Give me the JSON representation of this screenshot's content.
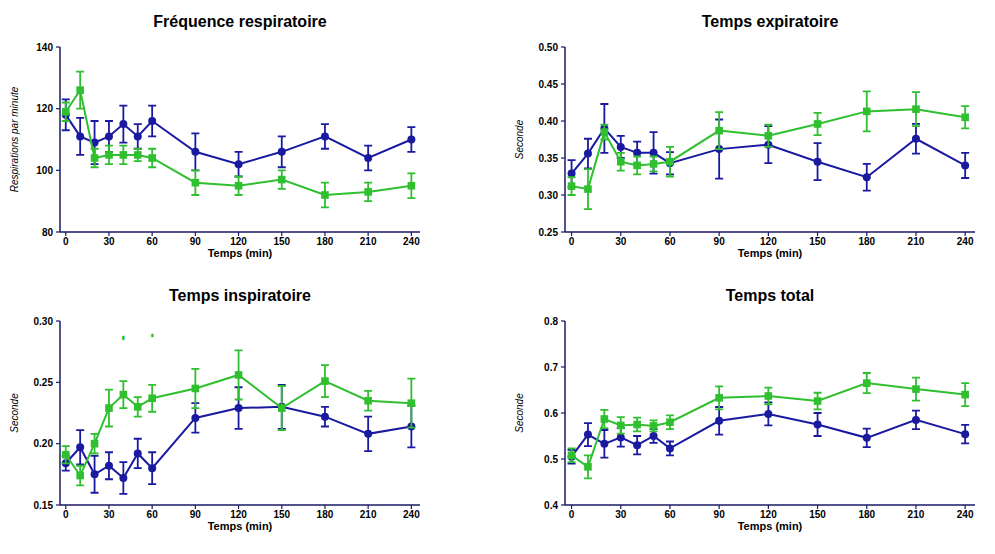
{
  "chart_data": [
    {
      "type": "line",
      "title": "Fréquence respiratoire",
      "xlabel": "Temps (min)",
      "ylabel": "Respirations par minute",
      "x": [
        0,
        10,
        20,
        30,
        40,
        50,
        60,
        90,
        120,
        150,
        180,
        210,
        240
      ],
      "xlim": [
        -4,
        246
      ],
      "xticks": [
        0,
        30,
        60,
        90,
        120,
        150,
        180,
        210,
        240
      ],
      "ylim": [
        80,
        140
      ],
      "yticks": [
        80,
        100,
        120,
        140
      ],
      "grid": false,
      "series": [
        {
          "color": "#1a1aa0",
          "marker": "circle",
          "values": [
            118,
            111,
            109,
            111,
            115,
            111,
            116,
            106,
            102,
            106,
            111,
            104,
            110
          ],
          "errors": [
            5,
            6,
            7,
            5,
            6,
            4,
            5,
            6,
            4,
            5,
            4,
            4,
            4
          ]
        },
        {
          "color": "#2fbf2f",
          "marker": "square",
          "values": [
            119,
            126,
            104,
            105,
            105,
            105,
            104,
            96,
            95,
            97,
            92,
            93,
            95
          ],
          "errors": [
            3,
            6,
            3,
            3,
            3,
            2,
            3,
            4,
            3,
            3,
            4,
            3,
            4
          ]
        }
      ]
    },
    {
      "type": "line",
      "title": "Temps expiratoire",
      "xlabel": "Temps (min)",
      "ylabel": "Seconde",
      "x": [
        0,
        10,
        20,
        30,
        40,
        50,
        60,
        90,
        120,
        150,
        180,
        210,
        240
      ],
      "xlim": [
        -4,
        246
      ],
      "xticks": [
        0,
        30,
        60,
        90,
        120,
        150,
        180,
        210,
        240
      ],
      "ylim": [
        0.25,
        0.5
      ],
      "yticks": [
        0.25,
        {
          "value": 0.3,
          "label": "0.30"
        },
        0.35,
        {
          "value": 0.4,
          "label": "0.40"
        },
        0.45,
        {
          "value": 0.5,
          "label": "0.50"
        }
      ],
      "grid": false,
      "series": [
        {
          "color": "#1a1aa0",
          "marker": "circle",
          "values": [
            0.329,
            0.356,
            0.39,
            0.365,
            0.357,
            0.357,
            0.343,
            0.362,
            0.368,
            0.345,
            0.324,
            0.376,
            0.34
          ],
          "errors": [
            0.018,
            0.02,
            0.033,
            0.015,
            0.015,
            0.028,
            0.015,
            0.04,
            0.025,
            0.025,
            0.018,
            0.02,
            0.017
          ]
        },
        {
          "color": "#2fbf2f",
          "marker": "square",
          "values": [
            0.312,
            0.308,
            0.385,
            0.345,
            0.34,
            0.342,
            0.345,
            0.387,
            0.38,
            0.396,
            0.413,
            0.416,
            0.405
          ],
          "errors": [
            0.012,
            0.027,
            0.01,
            0.012,
            0.012,
            0.01,
            0.02,
            0.025,
            0.015,
            0.015,
            0.027,
            0.023,
            0.015
          ]
        }
      ]
    },
    {
      "type": "line",
      "title": "Temps inspiratoire",
      "xlabel": "Temps (min)",
      "ylabel": "Seconde",
      "x": [
        0,
        10,
        20,
        30,
        40,
        50,
        60,
        90,
        120,
        150,
        180,
        210,
        240
      ],
      "xlim": [
        -4,
        246
      ],
      "xticks": [
        0,
        30,
        60,
        90,
        120,
        150,
        180,
        210,
        240
      ],
      "ylim": [
        0.15,
        0.3
      ],
      "yticks": [
        0.15,
        {
          "value": 0.2,
          "label": "0.20"
        },
        0.25,
        {
          "value": 0.3,
          "label": "0.30"
        }
      ],
      "grid": false,
      "series": [
        {
          "color": "#1a1aa0",
          "marker": "circle",
          "values": [
            0.184,
            0.197,
            0.175,
            0.182,
            0.172,
            0.192,
            0.18,
            0.221,
            0.229,
            0.23,
            0.222,
            0.208,
            0.214
          ],
          "errors": [
            0.006,
            0.014,
            0.015,
            0.011,
            0.013,
            0.012,
            0.013,
            0.012,
            0.017,
            0.018,
            0.008,
            0.014,
            0.017
          ]
        },
        {
          "color": "#2fbf2f",
          "marker": "square",
          "values": [
            0.191,
            0.174,
            0.2,
            0.229,
            0.24,
            0.23,
            0.237,
            0.245,
            0.256,
            0.229,
            0.251,
            0.235,
            0.233
          ],
          "errors": [
            0.007,
            0.008,
            0.008,
            0.015,
            0.011,
            0.008,
            0.011,
            0.016,
            0.02,
            0.018,
            0.013,
            0.008,
            0.02
          ]
        }
      ],
      "annotations": [
        {
          "x": 40,
          "y": 0.287,
          "text": "•••",
          "color": "#2fbf2f"
        },
        {
          "x": 60,
          "y": 0.289,
          "text": "••",
          "color": "#2fbf2f"
        }
      ]
    },
    {
      "type": "line",
      "title": "Temps total",
      "xlabel": "Temps (min)",
      "ylabel": "Seconde",
      "x": [
        0,
        10,
        20,
        30,
        40,
        50,
        60,
        90,
        120,
        150,
        180,
        210,
        240
      ],
      "xlim": [
        -4,
        246
      ],
      "xticks": [
        0,
        30,
        60,
        90,
        120,
        150,
        180,
        210,
        240
      ],
      "ylim": [
        0.4,
        0.8
      ],
      "yticks": [
        0.4,
        0.5,
        0.6,
        0.7,
        0.8
      ],
      "grid": false,
      "series": [
        {
          "color": "#1a1aa0",
          "marker": "circle",
          "values": [
            0.505,
            0.553,
            0.533,
            0.547,
            0.53,
            0.55,
            0.523,
            0.583,
            0.598,
            0.575,
            0.546,
            0.585,
            0.554
          ],
          "errors": [
            0.015,
            0.025,
            0.03,
            0.02,
            0.02,
            0.015,
            0.015,
            0.03,
            0.025,
            0.025,
            0.02,
            0.02,
            0.02
          ]
        },
        {
          "color": "#2fbf2f",
          "marker": "square",
          "values": [
            0.508,
            0.483,
            0.587,
            0.573,
            0.575,
            0.572,
            0.58,
            0.633,
            0.637,
            0.626,
            0.665,
            0.652,
            0.64
          ],
          "errors": [
            0.015,
            0.025,
            0.02,
            0.018,
            0.015,
            0.012,
            0.015,
            0.025,
            0.018,
            0.018,
            0.022,
            0.025,
            0.025
          ]
        }
      ]
    }
  ]
}
